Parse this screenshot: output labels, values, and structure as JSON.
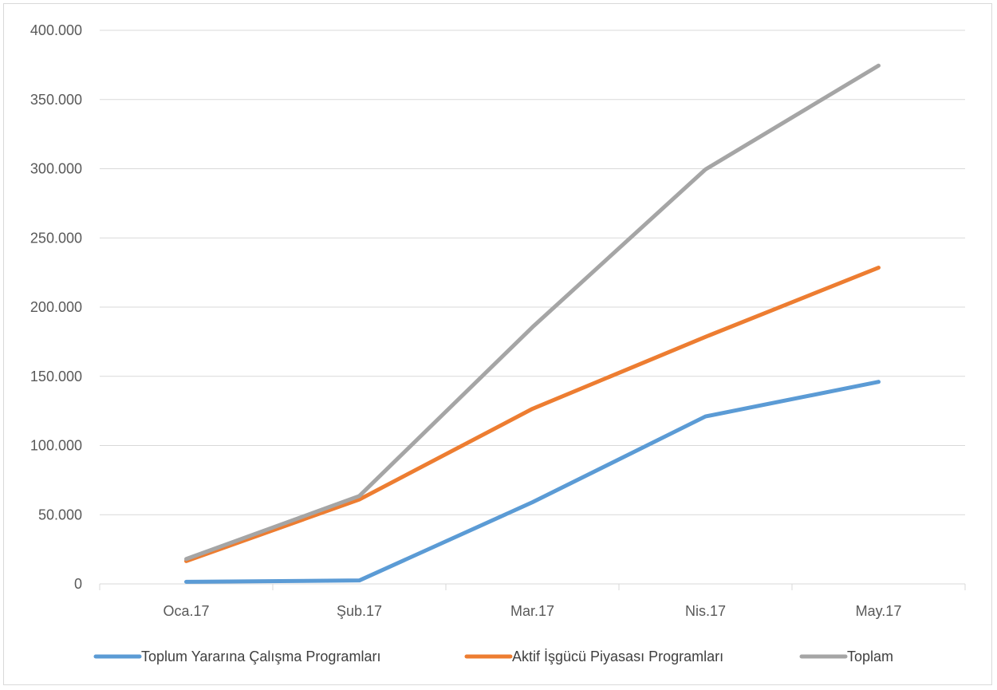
{
  "chart_data": {
    "type": "line",
    "categories": [
      "Oca.17",
      "Şub.17",
      "Mar.17",
      "Nis.17",
      "May.17"
    ],
    "series": [
      {
        "name": "Toplum Yararına Çalışma Programları",
        "color": "#5b9bd5",
        "values": [
          1500,
          2500,
          59000,
          121000,
          146000
        ]
      },
      {
        "name": "Aktif İşgücü Piyasası Programları",
        "color": "#ed7d31",
        "values": [
          16500,
          61000,
          126500,
          178500,
          228500
        ]
      },
      {
        "name": "Toplam",
        "color": "#a5a5a5",
        "values": [
          18000,
          63500,
          185500,
          299500,
          374500
        ]
      }
    ],
    "y_ticks": [
      "0",
      "50.000",
      "100.000",
      "150.000",
      "200.000",
      "250.000",
      "300.000",
      "350.000",
      "400.000"
    ],
    "ylim": [
      0,
      400000
    ],
    "grid": true,
    "legend_position": "bottom"
  }
}
